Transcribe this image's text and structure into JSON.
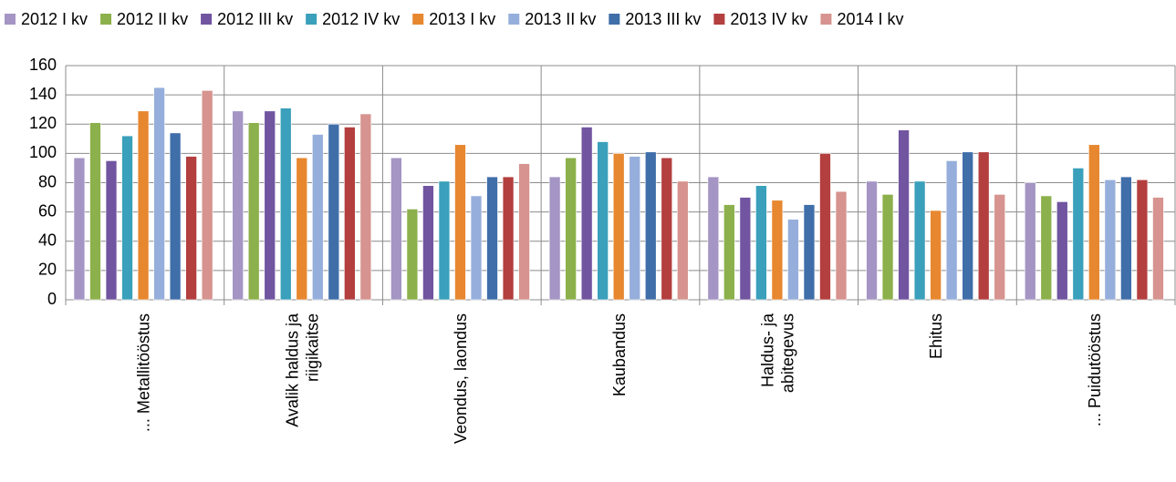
{
  "chart_data": {
    "type": "bar",
    "categories": [
      [
        "... Metallitööstus"
      ],
      [
        "Avalik haldus ja",
        "riigikaitse"
      ],
      [
        "Veondus, laondus"
      ],
      [
        "Kaubandus"
      ],
      [
        "Haldus- ja",
        "abitegevus"
      ],
      [
        "Ehitus"
      ],
      [
        "... Puidutööstus"
      ]
    ],
    "series": [
      {
        "name": "2012 I kv",
        "color": "#a495c4",
        "values": [
          97,
          129,
          97,
          84,
          84,
          81,
          80
        ]
      },
      {
        "name": "2012 II kv",
        "color": "#8cb04b",
        "values": [
          121,
          121,
          62,
          97,
          65,
          72,
          71
        ]
      },
      {
        "name": "2012 III kv",
        "color": "#7155a0",
        "values": [
          95,
          129,
          78,
          118,
          70,
          116,
          67
        ]
      },
      {
        "name": "2012 IV kv",
        "color": "#3aa0bb",
        "values": [
          112,
          131,
          81,
          108,
          78,
          81,
          90
        ]
      },
      {
        "name": "2013 I kv",
        "color": "#e7872f",
        "values": [
          129,
          97,
          106,
          100,
          68,
          61,
          106
        ]
      },
      {
        "name": "2013 II kv",
        "color": "#96aedb",
        "values": [
          145,
          113,
          71,
          98,
          55,
          95,
          82
        ]
      },
      {
        "name": "2013 III kv",
        "color": "#3f6ea9",
        "values": [
          114,
          120,
          84,
          101,
          65,
          101,
          84
        ]
      },
      {
        "name": "2013 IV kv",
        "color": "#b33f3e",
        "values": [
          98,
          118,
          84,
          97,
          100,
          101,
          82
        ]
      },
      {
        "name": "2014 I kv",
        "color": "#d6938f",
        "values": [
          143,
          127,
          93,
          81,
          74,
          72,
          70
        ]
      }
    ],
    "ylim": [
      0,
      160
    ],
    "yticks": [
      0,
      20,
      40,
      60,
      80,
      100,
      120,
      140,
      160
    ],
    "grid": true,
    "legend": "top"
  }
}
